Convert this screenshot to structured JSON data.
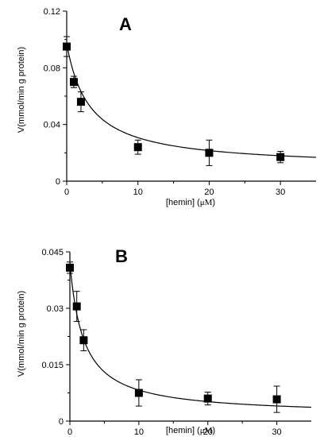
{
  "chart_data": [
    {
      "type": "scatter",
      "panel_label": "A",
      "xlabel_text": "[hemin] (",
      "xlabel_unit": "μM",
      "xlabel_close": ")",
      "ylabel": "V(mmol/min g protein)",
      "xlim": [
        0,
        35
      ],
      "ylim": [
        0,
        0.12
      ],
      "xticks": [
        "0",
        "10",
        "20",
        "30"
      ],
      "xtick_values": [
        0,
        10,
        20,
        30
      ],
      "yticks": [
        "0",
        "0.04",
        "0.08",
        "0.12"
      ],
      "ytick_values": [
        0,
        0.04,
        0.08,
        0.12
      ],
      "points": [
        {
          "x": 0,
          "y": 0.095,
          "err": 0.007
        },
        {
          "x": 1,
          "y": 0.07,
          "err": 0.004
        },
        {
          "x": 2,
          "y": 0.056,
          "err": 0.007
        },
        {
          "x": 10,
          "y": 0.024,
          "err": 0.005
        },
        {
          "x": 20,
          "y": 0.02,
          "err": 0.009
        },
        {
          "x": 30,
          "y": 0.017,
          "err": 0.004
        }
      ],
      "fit": {
        "v0": 0.097,
        "vinf": 0.0095,
        "k": 3.2
      }
    },
    {
      "type": "scatter",
      "panel_label": "B",
      "xlabel_text": "[hemin] (",
      "xlabel_unit": "μM",
      "xlabel_close": ")",
      "ylabel": "V(mmol/min g protein)",
      "xlim": [
        0,
        35
      ],
      "ylim": [
        0,
        0.045
      ],
      "xticks": [
        "0",
        "10",
        "20",
        "30"
      ],
      "xtick_values": [
        0,
        10,
        20,
        30
      ],
      "yticks": [
        "0",
        "0.015",
        "0.03",
        "0.045"
      ],
      "ytick_values": [
        0,
        0.015,
        0.03,
        0.045
      ],
      "points": [
        {
          "x": 0,
          "y": 0.0408,
          "err": 0.0015
        },
        {
          "x": 1,
          "y": 0.0305,
          "err": 0.004
        },
        {
          "x": 2,
          "y": 0.0215,
          "err": 0.0028
        },
        {
          "x": 10,
          "y": 0.0075,
          "err": 0.0035
        },
        {
          "x": 20,
          "y": 0.006,
          "err": 0.0017
        },
        {
          "x": 30,
          "y": 0.0058,
          "err": 0.0035
        }
      ],
      "fit": {
        "v0": 0.042,
        "vinf": 0.0015,
        "k": 2.0
      }
    }
  ]
}
